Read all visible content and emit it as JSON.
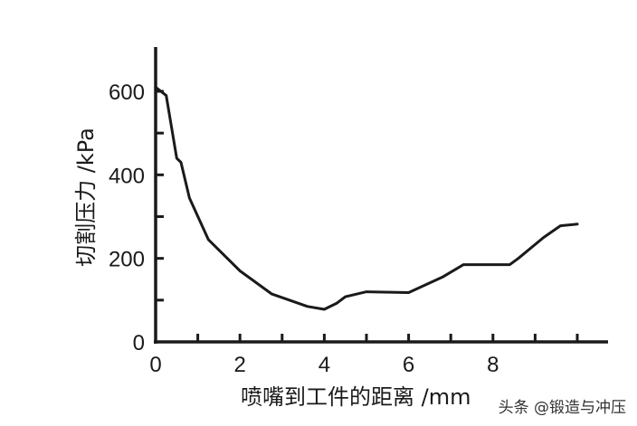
{
  "chart_data": {
    "type": "line",
    "title": "",
    "xlabel": "喷嘴到工件的距离 /mm",
    "ylabel": "切割压力 /kPa",
    "xlim": [
      0,
      10.5
    ],
    "ylim": [
      0,
      700
    ],
    "x_ticks": [
      0,
      2,
      4,
      6,
      8
    ],
    "y_ticks": [
      0,
      200,
      400,
      600
    ],
    "x_minor_ticks": [
      1,
      3,
      5,
      7,
      9,
      10
    ],
    "y_minor_ticks": [
      100,
      300,
      500
    ],
    "grid": false,
    "legend": null,
    "series": [
      {
        "name": "切割压力",
        "x": [
          0,
          0.25,
          0.5,
          0.6,
          0.8,
          1.25,
          2.0,
          2.75,
          3.6,
          4.0,
          4.3,
          4.5,
          5.0,
          6.0,
          6.8,
          7.3,
          8.4,
          8.6,
          9.2,
          9.6,
          10.0
        ],
        "y": [
          610,
          590,
          440,
          430,
          345,
          245,
          170,
          115,
          85,
          78,
          93,
          108,
          120,
          118,
          155,
          185,
          185,
          200,
          250,
          278,
          282
        ]
      }
    ]
  },
  "watermark": "头条 @锻造与冲压"
}
